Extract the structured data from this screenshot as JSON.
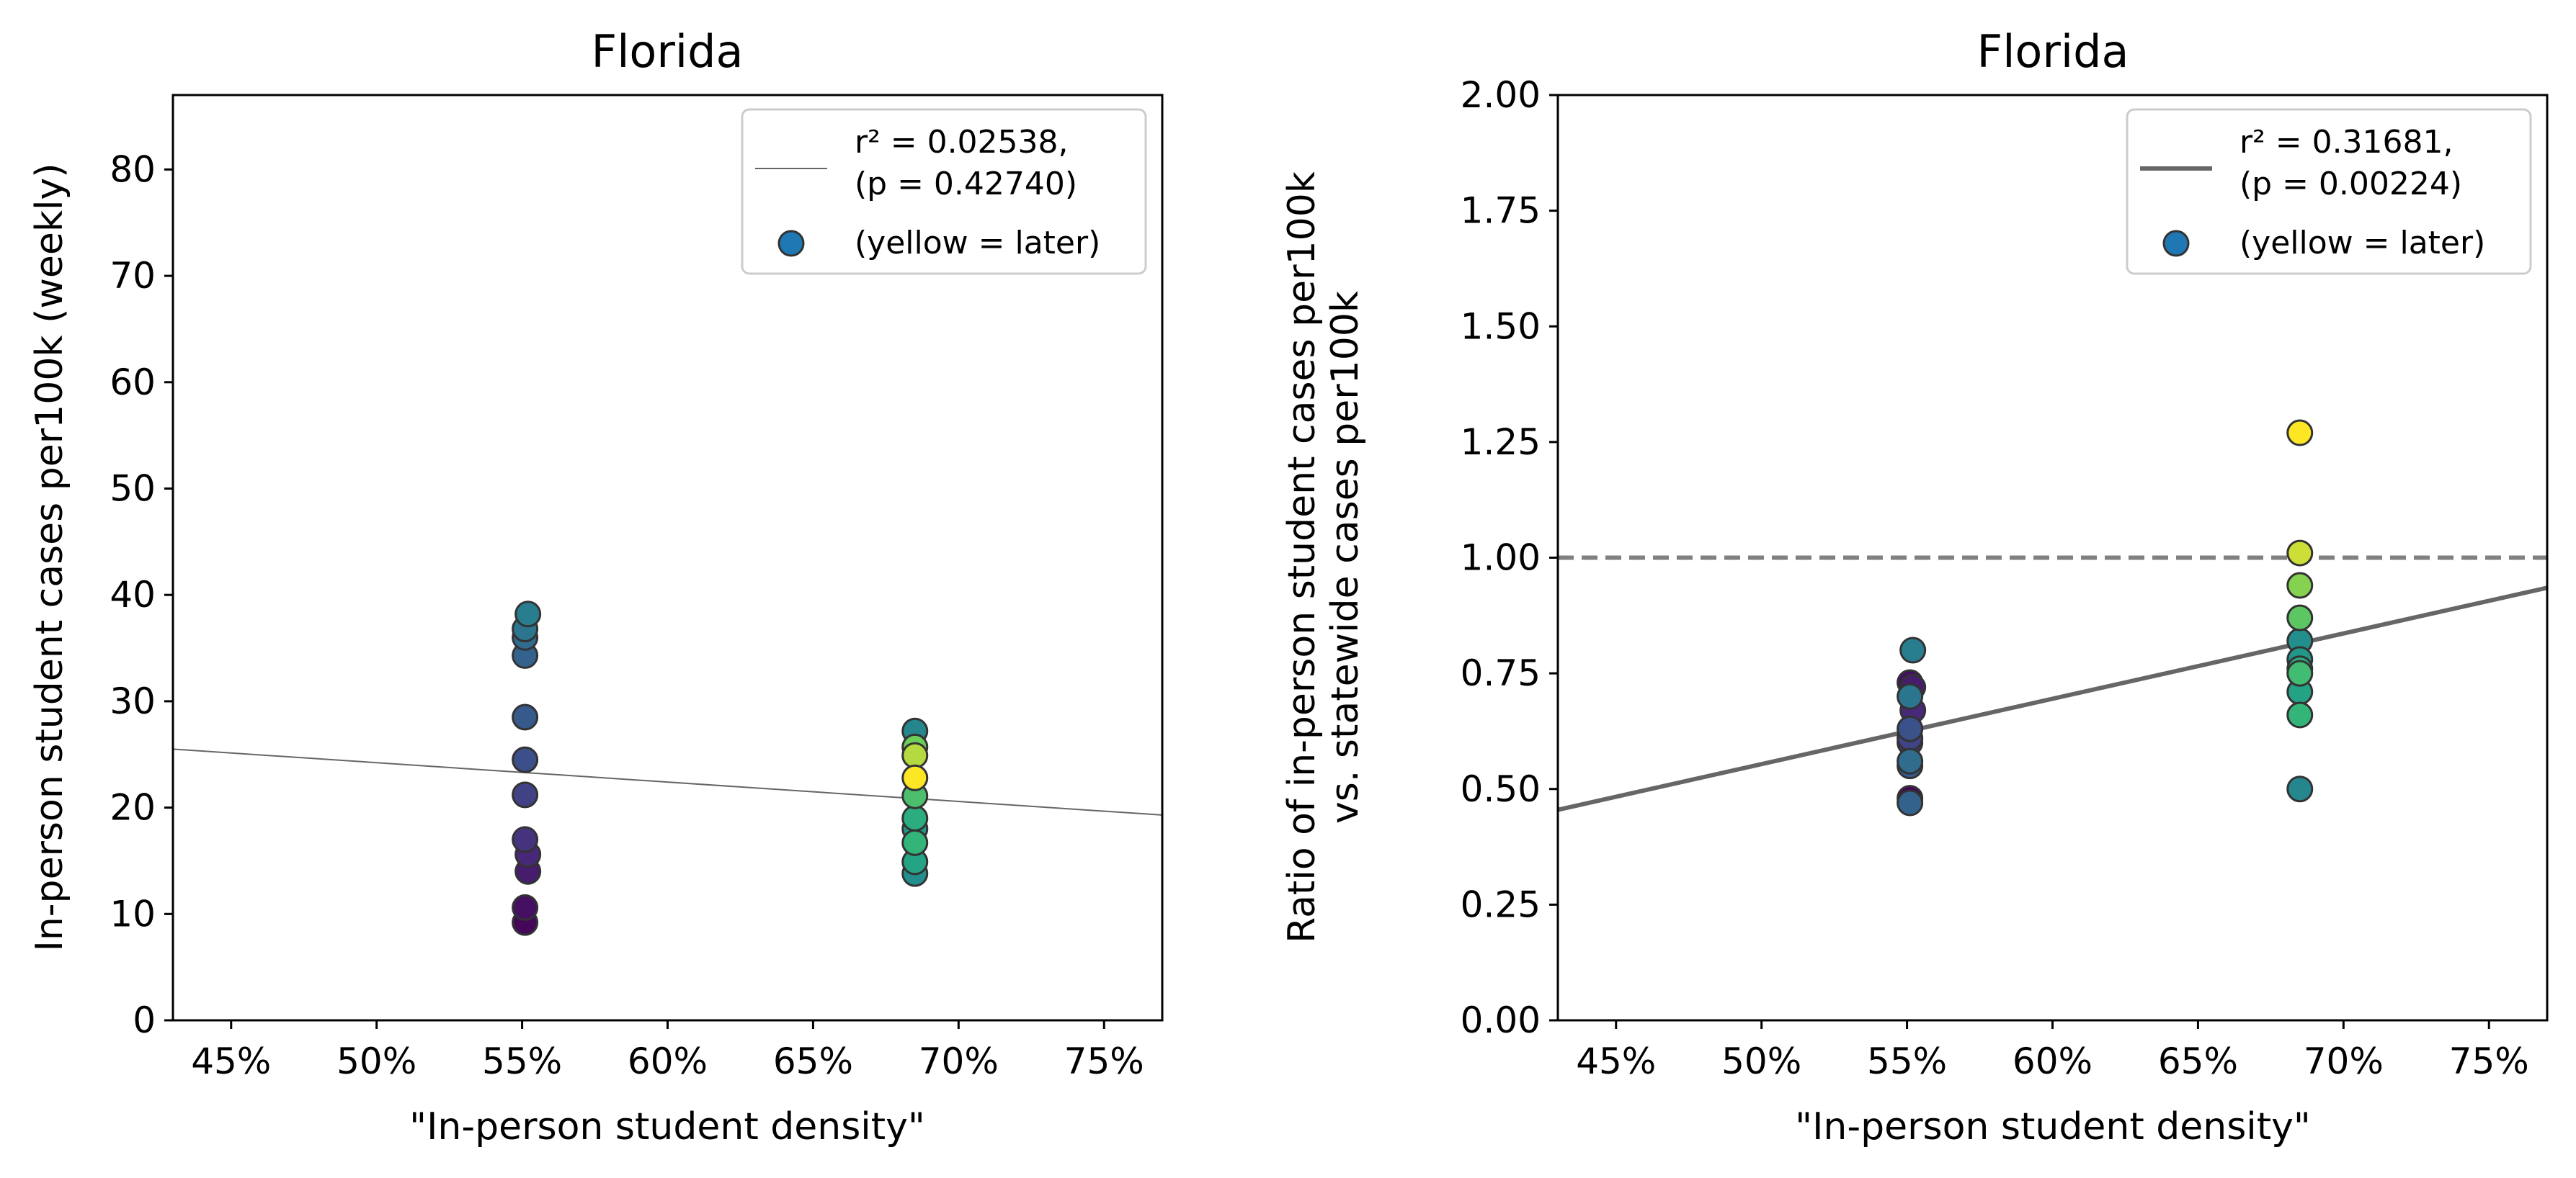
{
  "chart_data": [
    {
      "type": "scatter",
      "title": "Florida",
      "xlabel": "\"In-person student density\"",
      "ylabel": "In-person student cases per100k (weekly)",
      "xlim": [
        0.43,
        0.77
      ],
      "ylim": [
        0,
        87
      ],
      "x_ticks": [
        0.45,
        0.5,
        0.55,
        0.6,
        0.65,
        0.7,
        0.75
      ],
      "x_tick_labels": [
        "45%",
        "50%",
        "55%",
        "60%",
        "65%",
        "70%",
        "75%"
      ],
      "y_ticks": [
        0,
        10,
        20,
        30,
        40,
        50,
        60,
        70,
        80
      ],
      "y_tick_labels": [
        "0",
        "10",
        "20",
        "30",
        "40",
        "50",
        "60",
        "70",
        "80"
      ],
      "grid": false,
      "legend_position": "top-right",
      "legend": {
        "line_label_1": "r² = 0.02538,",
        "line_label_2": "(p = 0.42740)",
        "marker_label": "(yellow = later)"
      },
      "fit_line": {
        "color": "#666666",
        "thin": true,
        "points": [
          [
            0.43,
            25.5
          ],
          [
            0.77,
            19.3
          ]
        ]
      },
      "series": [
        {
          "points": [
            [
              0.551,
              9.2,
              0.02
            ],
            [
              0.551,
              10.6,
              0.05
            ],
            [
              0.552,
              14.0,
              0.09
            ],
            [
              0.552,
              15.6,
              0.13
            ],
            [
              0.551,
              17.0,
              0.17
            ],
            [
              0.551,
              21.2,
              0.22
            ],
            [
              0.551,
              24.5,
              0.27
            ],
            [
              0.551,
              28.5,
              0.32
            ],
            [
              0.551,
              34.3,
              0.36
            ],
            [
              0.551,
              36.0,
              0.4
            ],
            [
              0.551,
              36.8,
              0.44
            ],
            [
              0.552,
              38.2,
              0.48
            ],
            [
              0.685,
              27.2,
              0.52
            ],
            [
              0.685,
              13.8,
              0.56
            ],
            [
              0.685,
              18.0,
              0.6
            ],
            [
              0.685,
              14.9,
              0.66
            ],
            [
              0.685,
              19.0,
              0.7
            ],
            [
              0.685,
              16.7,
              0.74
            ],
            [
              0.685,
              21.1,
              0.8
            ],
            [
              0.685,
              25.7,
              0.88
            ],
            [
              0.685,
              24.9,
              0.94
            ],
            [
              0.685,
              22.8,
              1.0
            ]
          ]
        }
      ]
    },
    {
      "type": "scatter",
      "title": "Florida",
      "xlabel": "\"In-person student density\"",
      "ylabel_line1": "Ratio of in-person student cases per100k",
      "ylabel_line2": "vs. statewide cases per100k",
      "xlim": [
        0.43,
        0.77
      ],
      "ylim": [
        0,
        2.0
      ],
      "x_ticks": [
        0.45,
        0.5,
        0.55,
        0.6,
        0.65,
        0.7,
        0.75
      ],
      "x_tick_labels": [
        "45%",
        "50%",
        "55%",
        "60%",
        "65%",
        "70%",
        "75%"
      ],
      "y_ticks": [
        0,
        0.25,
        0.5,
        0.75,
        1.0,
        1.25,
        1.5,
        1.75,
        2.0
      ],
      "y_tick_labels": [
        "0.00",
        "0.25",
        "0.50",
        "0.75",
        "1.00",
        "1.25",
        "1.50",
        "1.75",
        "2.00"
      ],
      "grid": false,
      "legend_position": "top-right",
      "legend": {
        "line_label_1": "r² = 0.31681,",
        "line_label_2": "(p = 0.00224)",
        "marker_label": "(yellow = later)"
      },
      "reference_line": {
        "y": 1.0,
        "style": "dashed",
        "color": "#808080"
      },
      "fit_line": {
        "color": "#666666",
        "thin": false,
        "points": [
          [
            0.43,
            0.455
          ],
          [
            0.77,
            0.935
          ]
        ]
      },
      "series": [
        {
          "points": [
            [
              0.551,
              0.48,
              0.02
            ],
            [
              0.551,
              0.73,
              0.05
            ],
            [
              0.552,
              0.72,
              0.09
            ],
            [
              0.552,
              0.67,
              0.13
            ],
            [
              0.551,
              0.6,
              0.18
            ],
            [
              0.551,
              0.61,
              0.23
            ],
            [
              0.551,
              0.63,
              0.28
            ],
            [
              0.551,
              0.55,
              0.33
            ],
            [
              0.551,
              0.47,
              0.36
            ],
            [
              0.551,
              0.56,
              0.4
            ],
            [
              0.551,
              0.7,
              0.44
            ],
            [
              0.552,
              0.8,
              0.48
            ],
            [
              0.685,
              0.5,
              0.52
            ],
            [
              0.685,
              0.82,
              0.56
            ],
            [
              0.685,
              0.78,
              0.6
            ],
            [
              0.685,
              0.71,
              0.65
            ],
            [
              0.685,
              0.76,
              0.7
            ],
            [
              0.685,
              0.66,
              0.74
            ],
            [
              0.685,
              0.75,
              0.78
            ],
            [
              0.685,
              0.87,
              0.84
            ],
            [
              0.685,
              0.94,
              0.9
            ],
            [
              0.685,
              1.01,
              0.96
            ],
            [
              0.685,
              1.27,
              1.0
            ]
          ]
        }
      ]
    }
  ]
}
